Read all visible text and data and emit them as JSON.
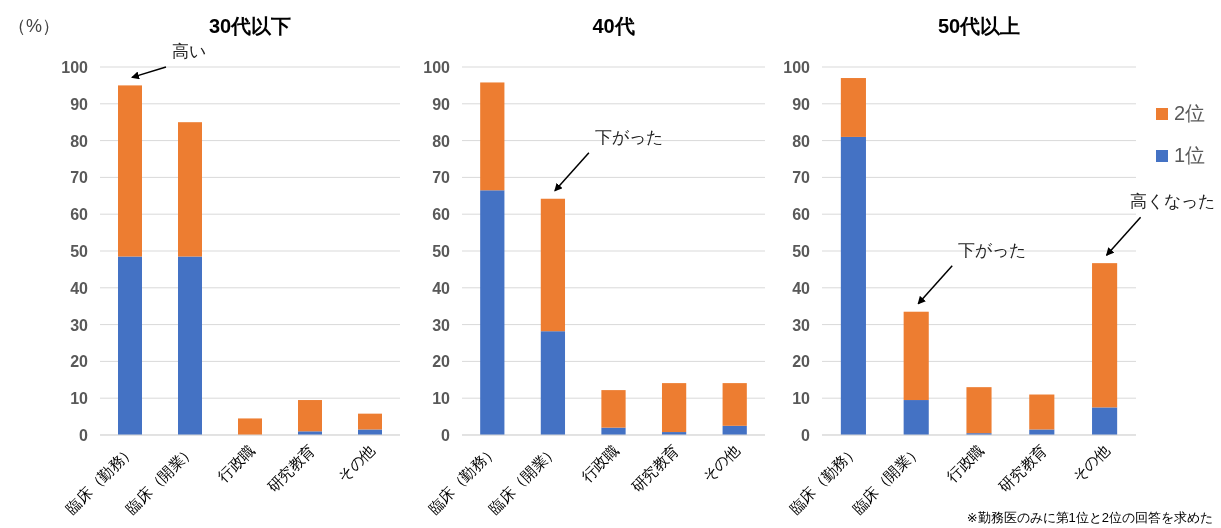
{
  "chart_data": [
    {
      "type": "bar",
      "stacked": true,
      "title": "30代以下",
      "ylabel": "（%）",
      "categories": [
        "臨床（勤務）",
        "臨床（開業）",
        "行政職",
        "研究教育",
        "その他"
      ],
      "series": [
        {
          "color": "#4472c4",
          "values": [
            48.5,
            48.5,
            0,
            1,
            1.5
          ]
        },
        {
          "color": "#ed7d31",
          "values": [
            46.5,
            36.5,
            4.5,
            8.5,
            4.3
          ]
        }
      ],
      "ylim": [
        0,
        100
      ],
      "yticks": [
        0,
        10,
        20,
        30,
        40,
        50,
        60,
        70,
        80,
        90,
        100
      ],
      "grid": "y",
      "legend": false,
      "annotations": [
        {
          "text": "高い",
          "x": "臨床（勤務）",
          "y": 95
        }
      ]
    },
    {
      "type": "bar",
      "stacked": true,
      "title": "40代",
      "categories": [
        "臨床（勤務）",
        "臨床（開業）",
        "行政職",
        "研究教育",
        "その他"
      ],
      "series": [
        {
          "color": "#4472c4",
          "values": [
            66.5,
            28.2,
            2,
            0.8,
            2.5
          ]
        },
        {
          "color": "#ed7d31",
          "values": [
            29.3,
            36,
            10.2,
            13.3,
            11.6
          ]
        }
      ],
      "ylim": [
        0,
        100
      ],
      "yticks": [
        0,
        10,
        20,
        30,
        40,
        50,
        60,
        70,
        80,
        90,
        100
      ],
      "grid": "y",
      "legend": false,
      "annotations": [
        {
          "text": "下がった",
          "x": "臨床（開業）",
          "y": 64.2
        }
      ]
    },
    {
      "type": "bar",
      "stacked": true,
      "title": "50代以上",
      "categories": [
        "臨床（勤務）",
        "臨床（開業）",
        "行政職",
        "研究教育",
        "その他"
      ],
      "series": [
        {
          "name": "1位",
          "color": "#4472c4",
          "values": [
            81,
            9.5,
            0.5,
            1.5,
            7.5
          ]
        },
        {
          "name": "2位",
          "color": "#ed7d31",
          "values": [
            16,
            24,
            12.5,
            9.5,
            39.2
          ]
        }
      ],
      "ylim": [
        0,
        100
      ],
      "yticks": [
        0,
        10,
        20,
        30,
        40,
        50,
        60,
        70,
        80,
        90,
        100
      ],
      "grid": "y",
      "legend": "right",
      "annotations": [
        {
          "text": "下がった",
          "x": "臨床（開業）",
          "y": 33.5
        },
        {
          "text": "高くなった",
          "x": "その他",
          "y": 46.7
        },
        "※勤務医のみに第1位と2位の回答を求めた"
      ]
    }
  ]
}
